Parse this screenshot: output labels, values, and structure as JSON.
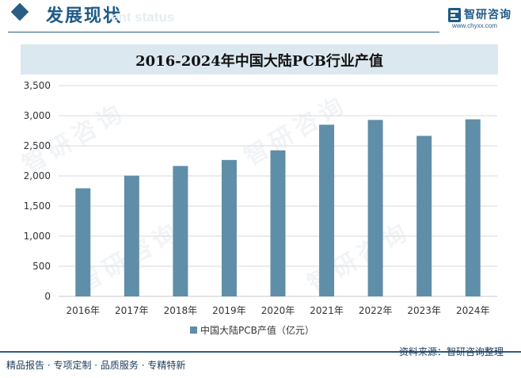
{
  "header": {
    "section_title": "发展现状",
    "section_subtitle": "ent status",
    "logo_text": "智研咨询",
    "logo_url": "www.chyxx.com"
  },
  "chart_data": {
    "type": "bar",
    "title": "2016-2024年中国大陆PCB行业产值",
    "categories": [
      "2016年",
      "2017年",
      "2018年",
      "2019年",
      "2020年",
      "2021年",
      "2022年",
      "2023年",
      "2024年"
    ],
    "series": [
      {
        "name": "中国大陆PCB产值（亿元）",
        "values": [
          1795,
          2005,
          2165,
          2265,
          2425,
          2850,
          2930,
          2665,
          2940
        ]
      }
    ],
    "ylim": [
      0,
      3500
    ],
    "yticks": [
      0,
      500,
      1000,
      1500,
      2000,
      2500,
      3000,
      3500
    ],
    "ytick_labels": [
      "0",
      "500",
      "1,000",
      "1,500",
      "2,000",
      "2,500",
      "3,000",
      "3,500"
    ],
    "grid": true,
    "legend": "bottom-center",
    "colors": {
      "bar": "#5f8ea8",
      "grid": "#dadada"
    }
  },
  "footer": {
    "left": "精品报告 · 专项定制 · 品质服务 · 专精特新",
    "right": "资料来源：智研咨询整理"
  },
  "watermark": "智研咨询"
}
